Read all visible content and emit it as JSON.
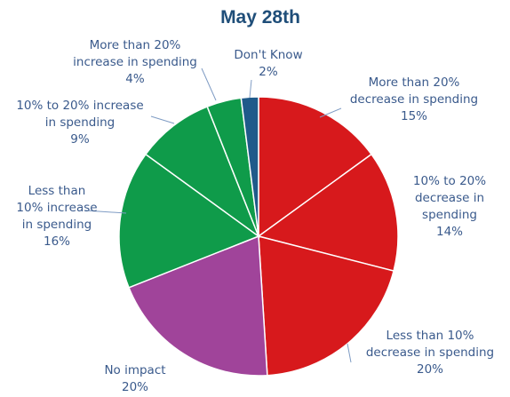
{
  "chart_data": {
    "type": "pie",
    "title": "May 28th",
    "slices": [
      {
        "label_lines": [
          "More than 20%",
          "decrease in spending",
          "15%"
        ],
        "value": 15,
        "color": "#d7191c"
      },
      {
        "label_lines": [
          "10% to 20%",
          "decrease in",
          "spending",
          "14%"
        ],
        "value": 14,
        "color": "#d7191c"
      },
      {
        "label_lines": [
          "Less than 10%",
          "decrease in spending",
          "20%"
        ],
        "value": 20,
        "color": "#d7191c"
      },
      {
        "label_lines": [
          "No impact",
          "20%"
        ],
        "value": 20,
        "color": "#a0449a"
      },
      {
        "label_lines": [
          "Less than",
          "10% increase",
          "in spending",
          "16%"
        ],
        "value": 16,
        "color": "#0f9b4a"
      },
      {
        "label_lines": [
          "10% to 20% increase",
          "in spending",
          "9%"
        ],
        "value": 9,
        "color": "#0f9b4a"
      },
      {
        "label_lines": [
          "More than 20%",
          "increase in spending",
          "4%"
        ],
        "value": 4,
        "color": "#0f9b4a"
      },
      {
        "label_lines": [
          "Don't Know",
          "2%"
        ],
        "value": 2,
        "color": "#1f5a8a"
      }
    ]
  }
}
